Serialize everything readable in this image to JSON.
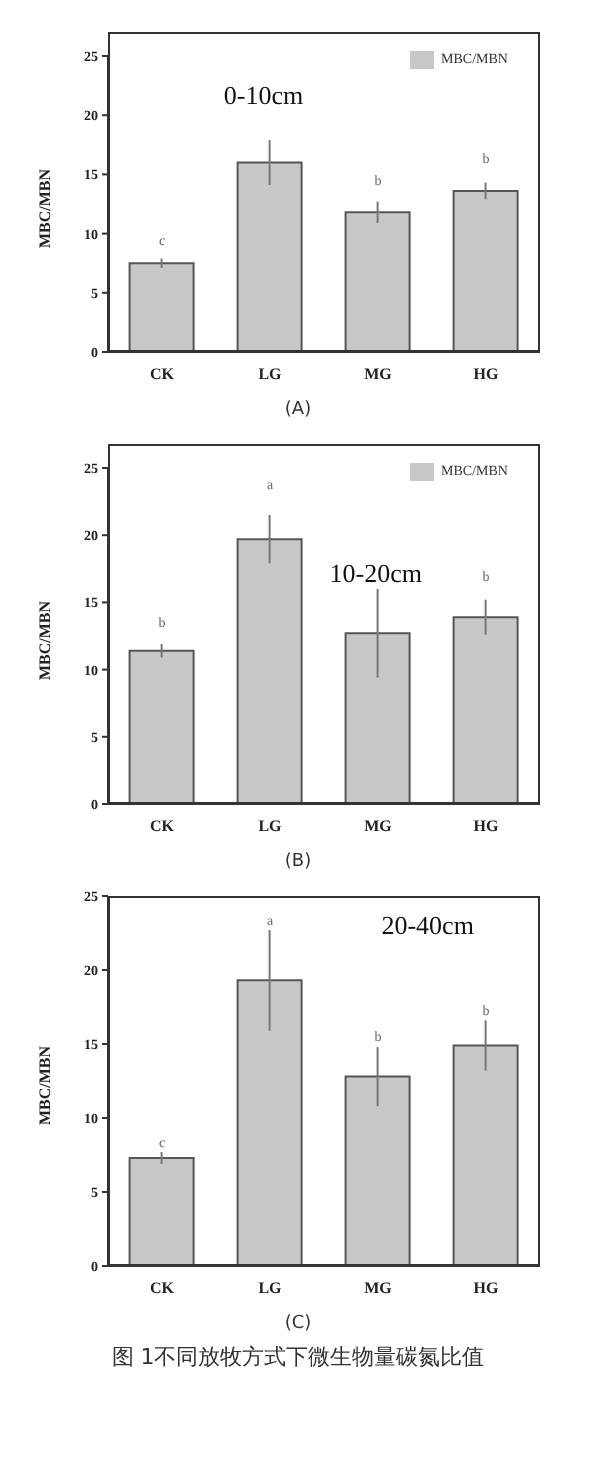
{
  "chart_data": [
    {
      "type": "bar",
      "title": "0-10cm",
      "subtitle": "(A)",
      "ylabel": "MBC/MBN",
      "categories": [
        "CK",
        "LG",
        "MG",
        "HG"
      ],
      "series": [
        {
          "name": "MBC/MBN",
          "color": "#c8c8c8",
          "values": [
            7.5,
            16,
            11.8,
            13.6
          ],
          "errors": [
            0.4,
            1.9,
            0.9,
            0.7
          ]
        }
      ],
      "ylim": [
        0,
        25
      ],
      "yticks": [
        0,
        5,
        10,
        15,
        20,
        25
      ],
      "legend": "top right",
      "annotations": [
        {
          "text": "c",
          "x": "CK",
          "y": 7.9
        },
        {
          "text": "b",
          "x": "MG",
          "y": 12.7
        },
        {
          "text": "b",
          "x": "HG",
          "y": 14.3
        }
      ]
    },
    {
      "type": "bar",
      "title": "10-20cm",
      "subtitle": "(B)",
      "ylabel": "MBC/MBN",
      "categories": [
        "CK",
        "LG",
        "MG",
        "HG"
      ],
      "series": [
        {
          "name": "MBC/MBN",
          "color": "#c8c8c8",
          "values": [
            11.4,
            19.7,
            12.7,
            13.9
          ],
          "errors": [
            0.5,
            1.8,
            3.3,
            1.3
          ]
        }
      ],
      "ylim": [
        0,
        25
      ],
      "yticks": [
        0,
        5,
        10,
        15,
        20,
        25
      ],
      "legend": "top right",
      "annotations": [
        {
          "text": "b",
          "x": "CK",
          "y": 11.9
        },
        {
          "text": "a",
          "x": "LG",
          "y": 21.5
        },
        {
          "text": "b",
          "x": "HG",
          "y": 15.2
        }
      ]
    },
    {
      "type": "bar",
      "title": "20-40cm",
      "subtitle": "(C)",
      "ylabel": "MBC/MBN",
      "categories": [
        "CK",
        "LG",
        "MG",
        "HG"
      ],
      "series": [
        {
          "color": "#c8c8c8",
          "values": [
            7.3,
            19.3,
            12.8,
            14.9
          ],
          "errors": [
            0.4,
            3.4,
            2.0,
            1.7
          ]
        }
      ],
      "ylim": [
        0,
        25
      ],
      "yticks": [
        0,
        5,
        10,
        15,
        20,
        25
      ],
      "annotations": [
        {
          "text": "c",
          "x": "CK",
          "y": 7.7
        },
        {
          "text": "a",
          "x": "LG",
          "y": 22.7
        },
        {
          "text": "b",
          "x": "MG",
          "y": 14.8
        },
        {
          "text": "b",
          "x": "HG",
          "y": 16.6
        },
        "图 1不同放牧方式下微生物量碳氮比值"
      ]
    }
  ]
}
